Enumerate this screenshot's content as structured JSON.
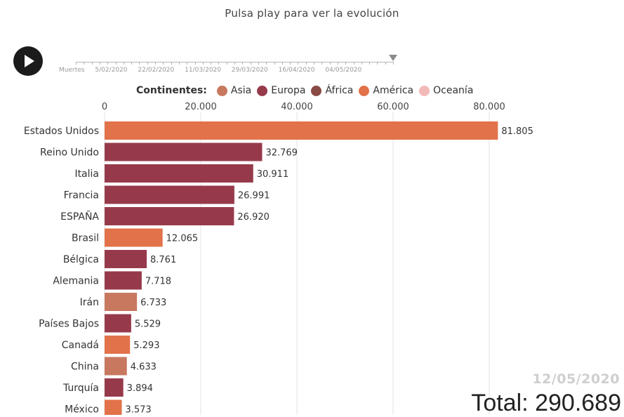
{
  "header": {
    "subtitle": "Pulsa play para ver la evolución"
  },
  "player": {
    "play_icon": "play-icon"
  },
  "timeline": {
    "labels": [
      "Muertes",
      "5/02/2020",
      "22/02/2020",
      "11/03/2020",
      "29/03/2020",
      "16/04/2020",
      "04/05/2020"
    ],
    "position": 1.0
  },
  "legend": {
    "title": "Continentes:",
    "items": [
      {
        "label": "Asia",
        "color": "#c8785f"
      },
      {
        "label": "Europa",
        "color": "#963a4b"
      },
      {
        "label": "África",
        "color": "#8a4a44"
      },
      {
        "label": "América",
        "color": "#e2724a"
      },
      {
        "label": "Oceanía",
        "color": "#f3b9b9"
      }
    ]
  },
  "chart_data": {
    "type": "bar",
    "orientation": "horizontal",
    "categories": [
      "Estados Unidos",
      "Reino Unido",
      "Italia",
      "Francia",
      "ESPAÑA",
      "Brasil",
      "Bélgica",
      "Alemania",
      "Irán",
      "Países Bajos",
      "Canadá",
      "China",
      "Turquía",
      "México"
    ],
    "values": [
      81805,
      32769,
      30911,
      26991,
      26920,
      12065,
      8761,
      7718,
      6733,
      5529,
      5293,
      4633,
      3894,
      3573
    ],
    "value_labels": [
      "81.805",
      "32.769",
      "30.911",
      "26.991",
      "26.920",
      "12.065",
      "8.761",
      "7.718",
      "6.733",
      "5.529",
      "5.293",
      "4.633",
      "3.894",
      "3.573"
    ],
    "continents": [
      "América",
      "Europa",
      "Europa",
      "Europa",
      "Europa",
      "America",
      "Europa",
      "Europa",
      "Asia",
      "Europa",
      "America",
      "Asia",
      "Europa",
      "America"
    ],
    "xlim": [
      0,
      82000
    ],
    "xticks": [
      0,
      20000,
      40000,
      60000,
      80000
    ],
    "xtick_labels": [
      "0",
      "20.000",
      "40.000",
      "60.000",
      "80.000"
    ],
    "grid": true,
    "colors": {
      "America": "#e2724a",
      "Europa": "#963a4b",
      "Asia": "#c8785f"
    }
  },
  "footer": {
    "date": "12/05/2020",
    "total_label": "Total: 290.689"
  }
}
